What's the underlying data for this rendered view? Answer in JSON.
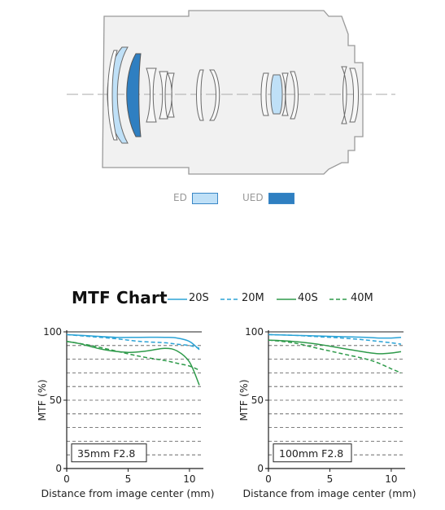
{
  "lens_diagram": {
    "legend": [
      {
        "label": "ED",
        "color": "#bfe0f7"
      },
      {
        "label": "UED",
        "color": "#2f7fc1"
      }
    ]
  },
  "mtf": {
    "title": "MTF Chart",
    "legend": [
      {
        "label": "20S",
        "color": "#2ba3d6",
        "dash": false
      },
      {
        "label": "20M",
        "color": "#2ba3d6",
        "dash": true
      },
      {
        "label": "40S",
        "color": "#2e9a4a",
        "dash": false
      },
      {
        "label": "40M",
        "color": "#2e9a4a",
        "dash": true
      }
    ]
  },
  "chart_data": [
    {
      "type": "line",
      "label": "35mm F2.8",
      "xlabel": "Distance from image center (mm)",
      "ylabel": "MTF (%)",
      "xlim": [
        0,
        11
      ],
      "ylim": [
        0,
        100
      ],
      "xticks": [
        0,
        5,
        10
      ],
      "yticks": [
        0,
        50,
        100
      ],
      "grid": "dashed horizontal every 10",
      "series": [
        {
          "name": "20S",
          "x": [
            0,
            2,
            4,
            6,
            8,
            9,
            10,
            10.8
          ],
          "y": [
            98,
            97,
            96,
            96,
            96,
            95.5,
            93,
            87
          ]
        },
        {
          "name": "20M",
          "x": [
            0,
            2,
            4,
            6,
            8,
            9,
            10,
            10.8
          ],
          "y": [
            98,
            96.5,
            95,
            93,
            92,
            91,
            90,
            88
          ]
        },
        {
          "name": "40S",
          "x": [
            0,
            1,
            3,
            5,
            6.5,
            8,
            9,
            10,
            10.8
          ],
          "y": [
            93,
            91.5,
            87,
            85,
            86,
            88,
            86,
            78,
            61
          ]
        },
        {
          "name": "40M",
          "x": [
            0,
            2,
            4,
            6,
            8,
            9,
            10,
            10.8
          ],
          "y": [
            93,
            90,
            86,
            82,
            79,
            77,
            75,
            72
          ]
        }
      ]
    },
    {
      "type": "line",
      "label": "100mm F2.8",
      "xlabel": "Distance from image center (mm)",
      "ylabel": "MTF (%)",
      "xlim": [
        0,
        11
      ],
      "ylim": [
        0,
        100
      ],
      "xticks": [
        0,
        5,
        10
      ],
      "yticks": [
        0,
        50,
        100
      ],
      "grid": "dashed horizontal every 10",
      "series": [
        {
          "name": "20S",
          "x": [
            0,
            2,
            4,
            6,
            8,
            9,
            10,
            10.8
          ],
          "y": [
            98,
            97.5,
            97,
            96.5,
            96,
            95.5,
            95.5,
            96
          ]
        },
        {
          "name": "20M",
          "x": [
            0,
            2,
            4,
            6,
            8,
            9,
            10,
            10.8
          ],
          "y": [
            98,
            97.5,
            96.5,
            95.5,
            94,
            93,
            92,
            91
          ]
        },
        {
          "name": "40S",
          "x": [
            0,
            2,
            4,
            6,
            8,
            9,
            10,
            10.8
          ],
          "y": [
            94,
            93,
            91,
            88,
            85,
            84,
            84.5,
            85.5
          ]
        },
        {
          "name": "40M",
          "x": [
            0,
            2,
            4,
            6,
            8,
            9,
            10,
            10.8
          ],
          "y": [
            94,
            92,
            88,
            84,
            80,
            77,
            73,
            70
          ]
        }
      ]
    }
  ]
}
